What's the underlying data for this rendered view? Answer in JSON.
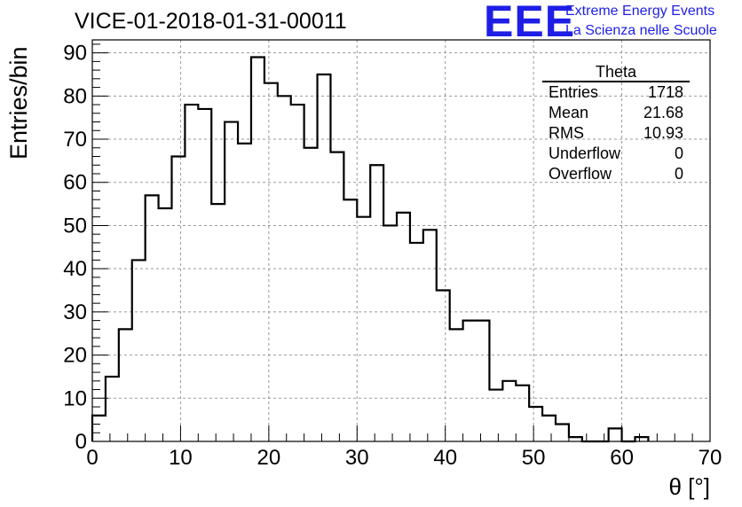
{
  "header": {
    "title": "VICE-01-2018-01-31-00011",
    "logo_text": "EEE",
    "logo_line1": "Extreme Energy Events",
    "logo_line2": "La Scienza nelle Scuole"
  },
  "stats_box": {
    "title": "Theta",
    "rows": [
      {
        "label": "Entries",
        "value": "1718"
      },
      {
        "label": "Mean",
        "value": "21.68"
      },
      {
        "label": "RMS",
        "value": "10.93"
      },
      {
        "label": "Underflow",
        "value": "0"
      },
      {
        "label": "Overflow",
        "value": "0"
      }
    ]
  },
  "colors": {
    "logo": "#1e1ee6",
    "histogram": "#000000",
    "grid": "#999999"
  },
  "chart_data": {
    "type": "bar",
    "histogram_style": "step",
    "bin_width": 1.5,
    "bin_start": 0,
    "values": [
      6,
      15,
      26,
      42,
      57,
      54,
      66,
      78,
      77,
      55,
      74,
      69,
      89,
      83,
      80,
      78,
      68,
      85,
      67,
      56,
      52,
      64,
      50,
      53,
      46,
      49,
      35,
      26,
      28,
      28,
      12,
      14,
      13,
      8,
      6,
      4,
      1,
      0,
      0,
      3,
      0,
      1
    ],
    "xlabel": "θ [°]",
    "ylabel": "Entries/bin",
    "xlim": [
      0,
      70
    ],
    "ylim": [
      0,
      93
    ],
    "x_ticks": [
      0,
      10,
      20,
      30,
      40,
      50,
      60,
      70
    ],
    "y_ticks": [
      0,
      10,
      20,
      30,
      40,
      50,
      60,
      70,
      80,
      90
    ],
    "grid": true
  }
}
